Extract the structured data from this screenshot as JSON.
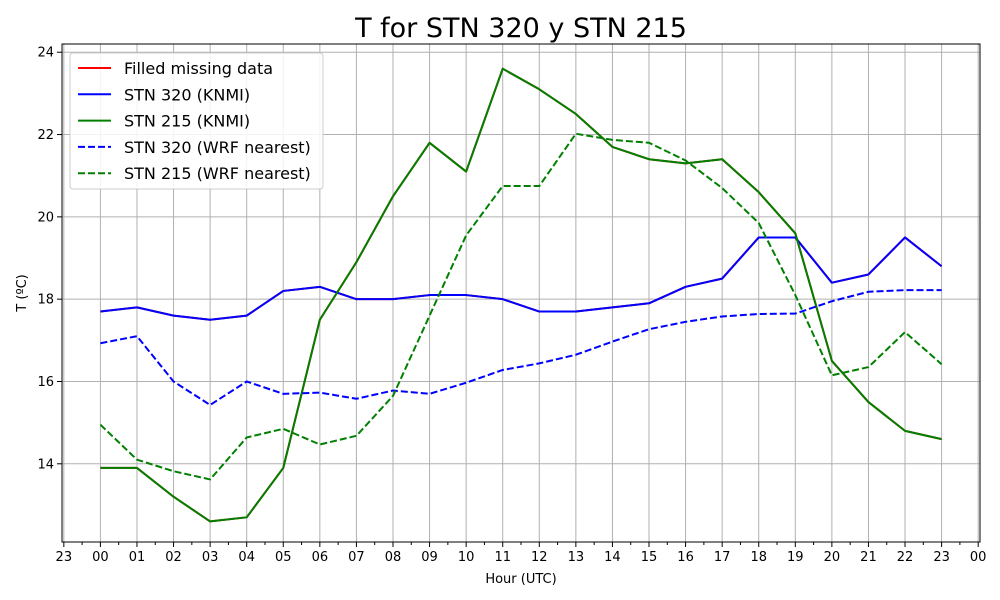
{
  "chart_data": {
    "type": "line",
    "title": "T for STN 320 y STN 215",
    "xlabel": "Hour (UTC)",
    "ylabel": "T (ºC)",
    "xlim": [
      -1.05,
      24.05
    ],
    "ylim": [
      12.1,
      24.2
    ],
    "grid": true,
    "legend_placement": "top-left",
    "x_ticks": [
      {
        "x": -1,
        "label": "23"
      },
      {
        "x": 0,
        "label": "00"
      },
      {
        "x": 1,
        "label": "01"
      },
      {
        "x": 2,
        "label": "02"
      },
      {
        "x": 3,
        "label": "03"
      },
      {
        "x": 4,
        "label": "04"
      },
      {
        "x": 5,
        "label": "05"
      },
      {
        "x": 6,
        "label": "06"
      },
      {
        "x": 7,
        "label": "07"
      },
      {
        "x": 8,
        "label": "08"
      },
      {
        "x": 9,
        "label": "09"
      },
      {
        "x": 10,
        "label": "10"
      },
      {
        "x": 11,
        "label": "11"
      },
      {
        "x": 12,
        "label": "12"
      },
      {
        "x": 13,
        "label": "13"
      },
      {
        "x": 14,
        "label": "14"
      },
      {
        "x": 15,
        "label": "15"
      },
      {
        "x": 16,
        "label": "16"
      },
      {
        "x": 17,
        "label": "17"
      },
      {
        "x": 18,
        "label": "18"
      },
      {
        "x": 19,
        "label": "19"
      },
      {
        "x": 20,
        "label": "20"
      },
      {
        "x": 21,
        "label": "21"
      },
      {
        "x": 22,
        "label": "22"
      },
      {
        "x": 23,
        "label": "23"
      },
      {
        "x": 24,
        "label": "00"
      }
    ],
    "y_ticks": [
      14,
      16,
      18,
      20,
      22,
      24
    ],
    "x": [
      0,
      1,
      2,
      3,
      4,
      5,
      6,
      7,
      8,
      9,
      10,
      11,
      12,
      13,
      14,
      15,
      16,
      17,
      18,
      19,
      20,
      21,
      22,
      23
    ],
    "series": [
      {
        "name": "Filled missing data",
        "color": "#ff0000",
        "dash": "solid",
        "values": [
          17.7,
          17.8,
          17.6,
          17.5,
          17.6,
          18.2,
          18.3,
          18.0,
          18.0,
          18.1,
          18.1,
          18.0,
          17.7,
          17.7,
          17.8,
          17.9,
          18.3,
          18.5,
          19.5,
          19.5,
          18.4,
          18.6,
          19.5,
          18.8
        ]
      },
      {
        "name": "Filled missing data",
        "color": "#ff0000",
        "dash": "solid",
        "legend": false,
        "values": [
          13.9,
          13.9,
          13.2,
          12.6,
          12.7,
          13.9,
          17.5,
          18.9,
          20.5,
          21.8,
          21.1,
          23.6,
          23.1,
          22.5,
          21.7,
          21.4,
          21.3,
          21.4,
          20.6,
          19.6,
          16.5,
          15.5,
          14.8,
          14.6
        ]
      },
      {
        "name": "STN 320 (KNMI)",
        "color": "#0000ff",
        "dash": "solid",
        "values": [
          17.7,
          17.8,
          17.6,
          17.5,
          17.6,
          18.2,
          18.3,
          18.0,
          18.0,
          18.1,
          18.1,
          18.0,
          17.7,
          17.7,
          17.8,
          17.9,
          18.3,
          18.5,
          19.5,
          19.5,
          18.4,
          18.6,
          19.5,
          18.8
        ]
      },
      {
        "name": "STN 215 (KNMI)",
        "color": "#008000",
        "dash": "solid",
        "values": [
          13.9,
          13.9,
          13.2,
          12.6,
          12.7,
          13.9,
          17.5,
          18.9,
          20.5,
          21.8,
          21.1,
          23.6,
          23.1,
          22.5,
          21.7,
          21.4,
          21.3,
          21.4,
          20.6,
          19.6,
          16.5,
          15.5,
          14.8,
          14.6
        ]
      },
      {
        "name": "STN 320 (WRF nearest)",
        "color": "#0000ff",
        "dash": "dashed",
        "values": [
          16.93,
          17.1,
          16.0,
          15.43,
          16.0,
          15.7,
          15.73,
          15.58,
          15.78,
          15.7,
          15.97,
          16.28,
          16.44,
          16.65,
          16.97,
          17.27,
          17.45,
          17.58,
          17.64,
          17.65,
          17.95,
          18.18,
          18.22,
          18.22
        ]
      },
      {
        "name": "STN 215 (WRF nearest)",
        "color": "#008000",
        "dash": "dashed",
        "values": [
          14.95,
          14.1,
          13.82,
          13.62,
          14.64,
          14.85,
          14.47,
          14.68,
          15.65,
          17.6,
          19.55,
          20.75,
          20.75,
          22.02,
          21.87,
          21.8,
          21.37,
          20.7,
          19.85,
          18.1,
          16.15,
          16.35,
          17.2,
          16.42
        ]
      }
    ]
  }
}
